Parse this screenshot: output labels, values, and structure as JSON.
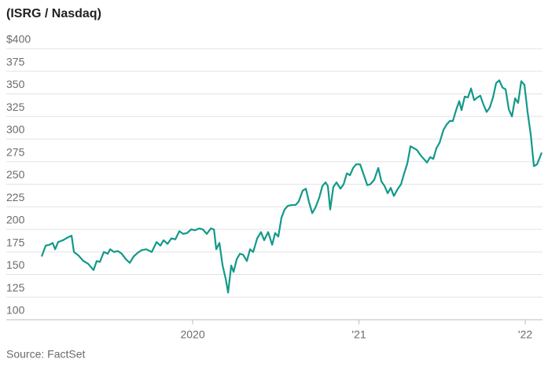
{
  "chart_data": {
    "type": "line",
    "title": "(ISRG / Nasdaq)",
    "source": "Source: FactSet",
    "xlim": [
      2019.092,
      2022.099
    ],
    "xticks": [
      {
        "value": 2020,
        "label": "2020"
      },
      {
        "value": 2021,
        "label": "'21"
      },
      {
        "value": 2022,
        "label": "'22"
      }
    ],
    "ylim": [
      100,
      400
    ],
    "yticks": [
      {
        "value": 400,
        "label": "$400"
      },
      375,
      350,
      325,
      300,
      275,
      250,
      225,
      200,
      175,
      150,
      125,
      100
    ],
    "grid": true,
    "x": [
      2019.092,
      2019.116,
      2019.139,
      2019.158,
      2019.173,
      2019.191,
      2019.22,
      2019.248,
      2019.272,
      2019.286,
      2019.314,
      2019.343,
      2019.371,
      2019.404,
      2019.423,
      2019.442,
      2019.466,
      2019.489,
      2019.504,
      2019.527,
      2019.551,
      2019.574,
      2019.598,
      2019.622,
      2019.645,
      2019.669,
      2019.693,
      2019.721,
      2019.754,
      2019.783,
      2019.806,
      2019.825,
      2019.849,
      2019.872,
      2019.896,
      2019.92,
      2019.943,
      2019.967,
      2019.991,
      2020.014,
      2020.038,
      2020.061,
      2020.085,
      2020.109,
      2020.128,
      2020.142,
      2020.161,
      2020.18,
      2020.199,
      2020.213,
      2020.232,
      2020.246,
      2020.265,
      2020.284,
      2020.303,
      2020.326,
      2020.345,
      2020.364,
      2020.388,
      2020.411,
      2020.43,
      2020.454,
      2020.478,
      2020.496,
      2020.515,
      2020.534,
      2020.553,
      2020.572,
      2020.596,
      2020.619,
      2020.638,
      2020.662,
      2020.681,
      2020.7,
      2020.719,
      2020.738,
      2020.761,
      2020.78,
      2020.799,
      2020.813,
      2020.827,
      2020.846,
      2020.865,
      2020.889,
      2020.908,
      2020.927,
      2020.946,
      2020.965,
      2020.983,
      2021.007,
      2021.026,
      2021.05,
      2021.069,
      2021.092,
      2021.116,
      2021.135,
      2021.154,
      2021.173,
      2021.191,
      2021.21,
      2021.234,
      2021.253,
      2021.272,
      2021.291,
      2021.31,
      2021.329,
      2021.348,
      2021.371,
      2021.39,
      2021.409,
      2021.428,
      2021.447,
      2021.466,
      2021.485,
      2021.508,
      2021.527,
      2021.546,
      2021.565,
      2021.584,
      2021.603,
      2021.617,
      2021.636,
      2021.655,
      2021.674,
      2021.693,
      2021.712,
      2021.73,
      2021.749,
      2021.768,
      2021.787,
      2021.806,
      2021.825,
      2021.844,
      2021.863,
      2021.882,
      2021.901,
      2021.92,
      2021.939,
      2021.957,
      2021.976,
      2021.995,
      2022.014,
      2022.033,
      2022.052,
      2022.071,
      2022.099
    ],
    "series": [
      {
        "name": "ISRG",
        "color": "#12998a",
        "values": [
          170,
          182,
          183,
          185,
          178,
          186,
          188,
          191,
          193,
          175,
          171,
          165,
          162,
          155,
          165,
          164,
          175,
          173,
          178,
          175,
          176,
          173,
          167,
          163,
          170,
          174,
          177,
          178,
          175,
          186,
          182,
          188,
          184,
          190,
          189,
          198,
          195,
          196,
          200,
          199,
          201,
          200,
          195,
          201,
          200,
          178,
          185,
          160,
          145,
          130,
          160,
          153,
          167,
          173,
          172,
          165,
          178,
          175,
          190,
          197,
          188,
          197,
          183,
          196,
          192,
          213,
          222,
          226,
          227,
          227,
          231,
          243,
          245,
          230,
          218,
          224,
          235,
          248,
          252,
          248,
          222,
          247,
          252,
          245,
          250,
          262,
          260,
          268,
          272,
          272,
          262,
          249,
          250,
          255,
          268,
          253,
          248,
          240,
          246,
          237,
          245,
          250,
          262,
          273,
          292,
          290,
          288,
          282,
          278,
          274,
          280,
          278,
          290,
          296,
          310,
          316,
          320,
          320,
          332,
          342,
          332,
          347,
          346,
          356,
          343,
          346,
          348,
          338,
          330,
          335,
          346,
          362,
          365,
          357,
          355,
          333,
          325,
          345,
          340,
          364,
          360,
          330,
          305,
          270,
          272,
          285
        ]
      }
    ]
  }
}
